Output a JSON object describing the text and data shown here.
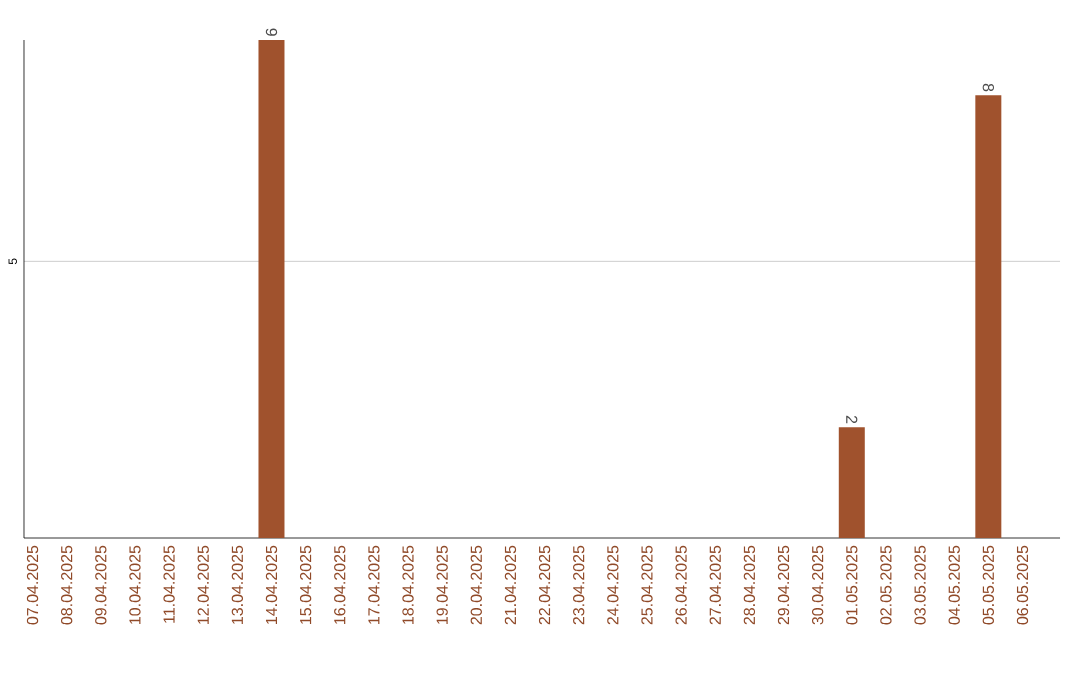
{
  "chart_data": {
    "type": "bar",
    "categories": [
      "07.04.2025",
      "08.04.2025",
      "09.04.2025",
      "10.04.2025",
      "11.04.2025",
      "12.04.2025",
      "13.04.2025",
      "14.04.2025",
      "15.04.2025",
      "16.04.2025",
      "17.04.2025",
      "18.04.2025",
      "19.04.2025",
      "20.04.2025",
      "21.04.2025",
      "22.04.2025",
      "23.04.2025",
      "24.04.2025",
      "25.04.2025",
      "26.04.2025",
      "27.04.2025",
      "28.04.2025",
      "29.04.2025",
      "30.04.2025",
      "01.05.2025",
      "02.05.2025",
      "03.05.2025",
      "04.05.2025",
      "05.05.2025",
      "06.05.2025"
    ],
    "values": [
      0,
      0,
      0,
      0,
      0,
      0,
      0,
      9,
      0,
      0,
      0,
      0,
      0,
      0,
      0,
      0,
      0,
      0,
      0,
      0,
      0,
      0,
      0,
      0,
      2,
      0,
      0,
      0,
      8,
      0
    ],
    "value_labels": [
      null,
      null,
      null,
      null,
      null,
      null,
      null,
      "9",
      null,
      null,
      null,
      null,
      null,
      null,
      null,
      null,
      null,
      null,
      null,
      null,
      null,
      null,
      null,
      null,
      "2",
      null,
      null,
      null,
      "8",
      null
    ],
    "color": "#a0522d",
    "ylim": [
      0,
      9
    ],
    "yticks": [
      5
    ],
    "grid": "y"
  }
}
